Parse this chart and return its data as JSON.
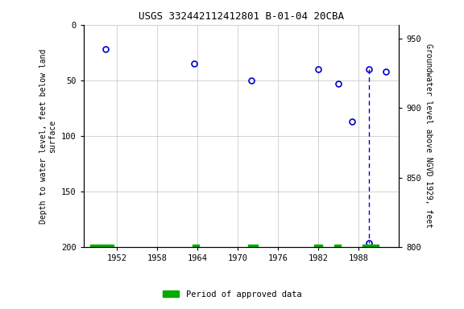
{
  "title": "USGS 332442112412801 B-01-04 20CBA",
  "ylabel_left": "Depth to water level, feet below land\nsurface",
  "ylabel_right": "Groundwater level above NGVD 1929, feet",
  "ylim_left": [
    200,
    0
  ],
  "ylim_right": [
    800,
    960
  ],
  "xlim": [
    1947,
    1994
  ],
  "xticks": [
    1952,
    1958,
    1964,
    1970,
    1976,
    1982,
    1988
  ],
  "yticks_left": [
    0,
    50,
    100,
    150,
    200
  ],
  "yticks_right": [
    800,
    850,
    900,
    950
  ],
  "data_points": [
    {
      "year": 1950.3,
      "depth": 22
    },
    {
      "year": 1963.5,
      "depth": 35
    },
    {
      "year": 1972.0,
      "depth": 50
    },
    {
      "year": 1982.0,
      "depth": 40
    },
    {
      "year": 1985.0,
      "depth": 53
    },
    {
      "year": 1987.0,
      "depth": 87
    },
    {
      "year": 1989.5,
      "depth": 40
    },
    {
      "year": 1989.5,
      "depth": 196
    },
    {
      "year": 1992.0,
      "depth": 42
    }
  ],
  "dashed_line_year": 1989.5,
  "dashed_line_depths": [
    40,
    196
  ],
  "marker_color": "#0000CC",
  "marker_size": 5,
  "grid_color": "#cccccc",
  "approved_data_periods": [
    [
      1948,
      1951.5
    ],
    [
      1963.2,
      1964.2
    ],
    [
      1971.5,
      1973.0
    ],
    [
      1981.3,
      1982.5
    ],
    [
      1984.3,
      1985.3
    ],
    [
      1988.5,
      1991.0
    ]
  ],
  "approved_color": "#00aa00",
  "background_color": "#ffffff",
  "title_fontsize": 9
}
